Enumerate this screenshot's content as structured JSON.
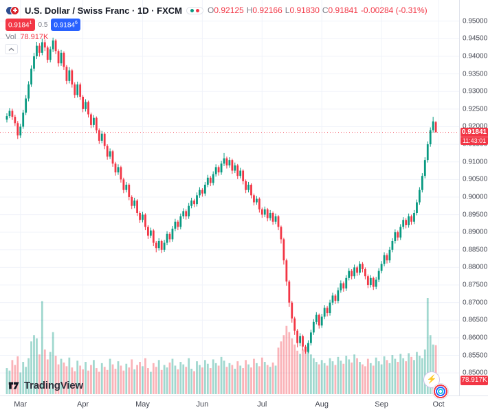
{
  "header": {
    "title": "U.S. Dollar / Swiss Franc · 1D · FXCM",
    "ohlc": {
      "o_key": "O",
      "o": "0.92125",
      "h_key": "H",
      "h": "0.92166",
      "l_key": "L",
      "l": "0.91830",
      "c_key": "C",
      "c": "0.91841",
      "change": "-0.00284 (-0.31%)"
    },
    "bid": {
      "value": "0.9184",
      "sup": "1"
    },
    "spread": "0.5",
    "ask": {
      "value": "0.9184",
      "sup": "6"
    },
    "volume": {
      "label": "Vol",
      "value": "78.917K"
    }
  },
  "price_scale": {
    "current_price": "0.91841",
    "countdown": "11:43:01",
    "volume_badge": "78.917K"
  },
  "footer": {
    "logo_text": "TradingView"
  },
  "colors": {
    "up": "#089981",
    "down": "#f23645",
    "vol_up": "rgba(8,153,129,0.38)",
    "vol_down": "rgba(242,54,69,0.38)",
    "grid": "#f0f3fa",
    "price_line": "#f23645",
    "accent_blue": "#2962ff"
  },
  "chart_data": {
    "type": "candlestick",
    "title": "U.S. Dollar / Swiss Franc",
    "timeframe": "1D",
    "exchange": "FXCM",
    "y_axis": {
      "min": 0.85,
      "max": 0.955,
      "tick": 0.005,
      "labels": [
        "0.95000",
        "0.94500",
        "0.94000",
        "0.93500",
        "0.93000",
        "0.92500",
        "0.92000",
        "0.91500",
        "0.91000",
        "0.90500",
        "0.90000",
        "0.89500",
        "0.89000",
        "0.88500",
        "0.88000",
        "0.87500",
        "0.87000",
        "0.86500",
        "0.86000",
        "0.85500",
        "0.85000"
      ]
    },
    "months": [
      {
        "label": "Mar",
        "i": 5
      },
      {
        "label": "Apr",
        "i": 28
      },
      {
        "label": "May",
        "i": 50
      },
      {
        "label": "Jun",
        "i": 72
      },
      {
        "label": "Jul",
        "i": 94
      },
      {
        "label": "Aug",
        "i": 116
      },
      {
        "label": "Sep",
        "i": 138
      },
      {
        "label": "Oct",
        "i": 159
      }
    ],
    "last": {
      "price": 0.91841,
      "change": "-0.00284",
      "change_pct": "-0.31%"
    },
    "ohlc": [
      [
        0.922,
        0.9238,
        0.9212,
        0.923
      ],
      [
        0.923,
        0.9253,
        0.9224,
        0.9245
      ],
      [
        0.9245,
        0.9251,
        0.9219,
        0.9228
      ],
      [
        0.9228,
        0.9234,
        0.9202,
        0.921
      ],
      [
        0.921,
        0.9216,
        0.9165,
        0.9175
      ],
      [
        0.9175,
        0.9208,
        0.9168,
        0.92
      ],
      [
        0.92,
        0.9248,
        0.9194,
        0.924
      ],
      [
        0.924,
        0.929,
        0.9233,
        0.928
      ],
      [
        0.928,
        0.9329,
        0.9272,
        0.932
      ],
      [
        0.932,
        0.9374,
        0.9313,
        0.9365
      ],
      [
        0.9365,
        0.941,
        0.9357,
        0.94
      ],
      [
        0.94,
        0.9441,
        0.9392,
        0.943
      ],
      [
        0.943,
        0.9437,
        0.9399,
        0.941
      ],
      [
        0.941,
        0.945,
        0.9403,
        0.944
      ],
      [
        0.944,
        0.9448,
        0.9415,
        0.9425
      ],
      [
        0.9425,
        0.943,
        0.9381,
        0.939
      ],
      [
        0.939,
        0.9428,
        0.9383,
        0.942
      ],
      [
        0.942,
        0.9453,
        0.9412,
        0.9445
      ],
      [
        0.9445,
        0.9449,
        0.9406,
        0.9415
      ],
      [
        0.9415,
        0.942,
        0.9371,
        0.938
      ],
      [
        0.938,
        0.9418,
        0.9373,
        0.941
      ],
      [
        0.941,
        0.9414,
        0.9361,
        0.937
      ],
      [
        0.937,
        0.9375,
        0.9321,
        0.933
      ],
      [
        0.933,
        0.9369,
        0.9323,
        0.936
      ],
      [
        0.936,
        0.9364,
        0.9311,
        0.932
      ],
      [
        0.932,
        0.9326,
        0.9281,
        0.929
      ],
      [
        0.929,
        0.9328,
        0.9283,
        0.932
      ],
      [
        0.932,
        0.9325,
        0.9276,
        0.9285
      ],
      [
        0.9285,
        0.929,
        0.9241,
        0.925
      ],
      [
        0.925,
        0.9278,
        0.9243,
        0.927
      ],
      [
        0.927,
        0.9274,
        0.9226,
        0.9235
      ],
      [
        0.9235,
        0.924,
        0.9196,
        0.9205
      ],
      [
        0.9205,
        0.9233,
        0.9198,
        0.9225
      ],
      [
        0.9225,
        0.9229,
        0.9181,
        0.919
      ],
      [
        0.919,
        0.9195,
        0.9151,
        0.916
      ],
      [
        0.916,
        0.9188,
        0.9153,
        0.918
      ],
      [
        0.918,
        0.9184,
        0.9136,
        0.9145
      ],
      [
        0.9145,
        0.915,
        0.9106,
        0.9115
      ],
      [
        0.9115,
        0.9138,
        0.9108,
        0.913
      ],
      [
        0.913,
        0.9134,
        0.9086,
        0.9095
      ],
      [
        0.9095,
        0.91,
        0.9061,
        0.907
      ],
      [
        0.907,
        0.9093,
        0.9063,
        0.9085
      ],
      [
        0.9085,
        0.9089,
        0.9041,
        0.905
      ],
      [
        0.905,
        0.9055,
        0.9011,
        0.902
      ],
      [
        0.902,
        0.9043,
        0.9013,
        0.9035
      ],
      [
        0.9035,
        0.9039,
        0.8991,
        0.9
      ],
      [
        0.9,
        0.9005,
        0.8966,
        0.8975
      ],
      [
        0.8975,
        0.8998,
        0.8968,
        0.899
      ],
      [
        0.899,
        0.8994,
        0.8946,
        0.8955
      ],
      [
        0.8955,
        0.896,
        0.8926,
        0.8935
      ],
      [
        0.8935,
        0.8958,
        0.8928,
        0.895
      ],
      [
        0.895,
        0.8954,
        0.8906,
        0.8915
      ],
      [
        0.8915,
        0.892,
        0.8881,
        0.889
      ],
      [
        0.889,
        0.8913,
        0.8883,
        0.8905
      ],
      [
        0.8905,
        0.8909,
        0.8861,
        0.887
      ],
      [
        0.887,
        0.8875,
        0.8843,
        0.8855
      ],
      [
        0.8855,
        0.8883,
        0.8848,
        0.8875
      ],
      [
        0.8875,
        0.8879,
        0.8841,
        0.885
      ],
      [
        0.885,
        0.8878,
        0.8844,
        0.887
      ],
      [
        0.887,
        0.8903,
        0.8863,
        0.8895
      ],
      [
        0.8895,
        0.89,
        0.8871,
        0.888
      ],
      [
        0.888,
        0.8918,
        0.8873,
        0.891
      ],
      [
        0.891,
        0.8938,
        0.8903,
        0.893
      ],
      [
        0.893,
        0.8935,
        0.8906,
        0.8915
      ],
      [
        0.8915,
        0.8953,
        0.8908,
        0.8945
      ],
      [
        0.8945,
        0.8968,
        0.8938,
        0.896
      ],
      [
        0.896,
        0.8965,
        0.8936,
        0.8945
      ],
      [
        0.8945,
        0.8983,
        0.8938,
        0.8975
      ],
      [
        0.8975,
        0.8998,
        0.8968,
        0.899
      ],
      [
        0.899,
        0.8995,
        0.8971,
        0.898
      ],
      [
        0.898,
        0.9013,
        0.8973,
        0.9005
      ],
      [
        0.9005,
        0.9028,
        0.8998,
        0.902
      ],
      [
        0.902,
        0.9025,
        0.9001,
        0.901
      ],
      [
        0.901,
        0.9043,
        0.9003,
        0.9035
      ],
      [
        0.9035,
        0.9063,
        0.9028,
        0.9055
      ],
      [
        0.9055,
        0.906,
        0.9031,
        0.904
      ],
      [
        0.904,
        0.9073,
        0.9033,
        0.9065
      ],
      [
        0.9065,
        0.9093,
        0.9058,
        0.9085
      ],
      [
        0.9085,
        0.909,
        0.9061,
        0.907
      ],
      [
        0.907,
        0.9103,
        0.9063,
        0.9095
      ],
      [
        0.9095,
        0.9125,
        0.9088,
        0.911
      ],
      [
        0.911,
        0.9115,
        0.9081,
        0.909
      ],
      [
        0.909,
        0.9113,
        0.9083,
        0.9105
      ],
      [
        0.9105,
        0.9109,
        0.9066,
        0.9075
      ],
      [
        0.9075,
        0.9098,
        0.9068,
        0.909
      ],
      [
        0.909,
        0.9094,
        0.9051,
        0.906
      ],
      [
        0.906,
        0.9083,
        0.9053,
        0.9075
      ],
      [
        0.9075,
        0.9079,
        0.9036,
        0.9045
      ],
      [
        0.9045,
        0.905,
        0.9011,
        0.902
      ],
      [
        0.902,
        0.9043,
        0.9013,
        0.9035
      ],
      [
        0.9035,
        0.9039,
        0.8996,
        0.9005
      ],
      [
        0.9005,
        0.901,
        0.8976,
        0.8985
      ],
      [
        0.8985,
        0.9003,
        0.8978,
        0.8995
      ],
      [
        0.8995,
        0.8999,
        0.8956,
        0.8965
      ],
      [
        0.8965,
        0.897,
        0.8941,
        0.895
      ],
      [
        0.895,
        0.8973,
        0.8943,
        0.8965
      ],
      [
        0.8965,
        0.8969,
        0.8931,
        0.894
      ],
      [
        0.894,
        0.8963,
        0.8933,
        0.8955
      ],
      [
        0.8955,
        0.8959,
        0.8921,
        0.893
      ],
      [
        0.893,
        0.8953,
        0.8923,
        0.8945
      ],
      [
        0.8945,
        0.8949,
        0.8906,
        0.8915
      ],
      [
        0.8915,
        0.8919,
        0.8868,
        0.888
      ],
      [
        0.888,
        0.8884,
        0.8808,
        0.882
      ],
      [
        0.882,
        0.8825,
        0.8748,
        0.876
      ],
      [
        0.876,
        0.8764,
        0.8688,
        0.87
      ],
      [
        0.87,
        0.8705,
        0.8643,
        0.8655
      ],
      [
        0.8655,
        0.866,
        0.8608,
        0.862
      ],
      [
        0.862,
        0.8625,
        0.8573,
        0.8585
      ],
      [
        0.8585,
        0.8613,
        0.8576,
        0.8605
      ],
      [
        0.8605,
        0.8609,
        0.8564,
        0.8575
      ],
      [
        0.8575,
        0.858,
        0.8555,
        0.856
      ],
      [
        0.856,
        0.8593,
        0.8556,
        0.8585
      ],
      [
        0.8585,
        0.8623,
        0.8578,
        0.8615
      ],
      [
        0.8615,
        0.8653,
        0.8608,
        0.8645
      ],
      [
        0.8645,
        0.8673,
        0.8638,
        0.8665
      ],
      [
        0.8665,
        0.8669,
        0.8626,
        0.8635
      ],
      [
        0.8635,
        0.8668,
        0.8628,
        0.866
      ],
      [
        0.866,
        0.8693,
        0.8653,
        0.8685
      ],
      [
        0.8685,
        0.869,
        0.8661,
        0.867
      ],
      [
        0.867,
        0.8708,
        0.8663,
        0.87
      ],
      [
        0.87,
        0.8728,
        0.8693,
        0.872
      ],
      [
        0.872,
        0.8725,
        0.8696,
        0.8705
      ],
      [
        0.8705,
        0.8743,
        0.8698,
        0.8735
      ],
      [
        0.8735,
        0.8763,
        0.8728,
        0.8755
      ],
      [
        0.8755,
        0.876,
        0.8731,
        0.874
      ],
      [
        0.874,
        0.8778,
        0.8733,
        0.877
      ],
      [
        0.877,
        0.8798,
        0.8763,
        0.879
      ],
      [
        0.879,
        0.8795,
        0.8766,
        0.8775
      ],
      [
        0.8775,
        0.8808,
        0.8768,
        0.88
      ],
      [
        0.88,
        0.8805,
        0.8776,
        0.8785
      ],
      [
        0.8785,
        0.8818,
        0.8778,
        0.881
      ],
      [
        0.881,
        0.8815,
        0.8786,
        0.8795
      ],
      [
        0.8795,
        0.88,
        0.8766,
        0.8775
      ],
      [
        0.8775,
        0.878,
        0.8741,
        0.875
      ],
      [
        0.875,
        0.8778,
        0.8743,
        0.877
      ],
      [
        0.877,
        0.8774,
        0.8736,
        0.8745
      ],
      [
        0.8745,
        0.8773,
        0.8738,
        0.8765
      ],
      [
        0.8765,
        0.8798,
        0.8758,
        0.879
      ],
      [
        0.879,
        0.8818,
        0.8783,
        0.881
      ],
      [
        0.881,
        0.8843,
        0.8803,
        0.8835
      ],
      [
        0.8835,
        0.884,
        0.8811,
        0.882
      ],
      [
        0.882,
        0.8858,
        0.8813,
        0.885
      ],
      [
        0.885,
        0.8883,
        0.8843,
        0.8875
      ],
      [
        0.8875,
        0.8908,
        0.8868,
        0.89
      ],
      [
        0.89,
        0.8905,
        0.8876,
        0.8885
      ],
      [
        0.8885,
        0.8923,
        0.8878,
        0.8915
      ],
      [
        0.8915,
        0.8943,
        0.8908,
        0.8935
      ],
      [
        0.8935,
        0.894,
        0.8911,
        0.892
      ],
      [
        0.892,
        0.8953,
        0.8913,
        0.8945
      ],
      [
        0.8945,
        0.895,
        0.8921,
        0.893
      ],
      [
        0.893,
        0.8963,
        0.8923,
        0.8955
      ],
      [
        0.8955,
        0.8993,
        0.8948,
        0.8985
      ],
      [
        0.8985,
        0.9028,
        0.8978,
        0.902
      ],
      [
        0.902,
        0.9068,
        0.9013,
        0.906
      ],
      [
        0.906,
        0.9113,
        0.9053,
        0.9105
      ],
      [
        0.9105,
        0.9158,
        0.9098,
        0.915
      ],
      [
        0.915,
        0.9198,
        0.9143,
        0.919
      ],
      [
        0.919,
        0.9228,
        0.9183,
        0.9215
      ],
      [
        0.92125,
        0.92166,
        0.9183,
        0.91841
      ]
    ],
    "volumes_k": [
      42,
      38,
      55,
      47,
      61,
      35,
      52,
      44,
      58,
      85,
      95,
      90,
      64,
      150,
      72,
      56,
      68,
      100,
      62,
      48,
      57,
      51,
      45,
      59,
      43,
      37,
      54,
      46,
      40,
      52,
      38,
      47,
      55,
      42,
      36,
      50,
      44,
      39,
      57,
      48,
      41,
      53,
      46,
      38,
      49,
      43,
      56,
      40,
      47,
      52,
      45,
      58,
      42,
      36,
      50,
      44,
      55,
      39,
      47,
      43,
      51,
      57,
      46,
      40,
      52,
      48,
      44,
      58,
      41,
      37,
      53,
      47,
      43,
      55,
      49,
      42,
      56,
      50,
      46,
      60,
      54,
      44,
      50,
      47,
      41,
      53,
      46,
      42,
      55,
      48,
      43,
      57,
      50,
      45,
      59,
      52,
      47,
      44,
      51,
      46,
      75,
      85,
      95,
      110,
      100,
      90,
      80,
      70,
      65,
      72,
      68,
      70,
      64,
      58,
      52,
      48,
      55,
      50,
      46,
      58,
      53,
      47,
      60,
      54,
      49,
      62,
      56,
      51,
      64,
      58,
      52,
      48,
      45,
      57,
      50,
      46,
      59,
      53,
      48,
      61,
      55,
      50,
      63,
      57,
      52,
      65,
      58,
      53,
      66,
      60,
      55,
      68,
      62,
      58,
      72,
      155,
      95,
      80,
      79
    ]
  }
}
